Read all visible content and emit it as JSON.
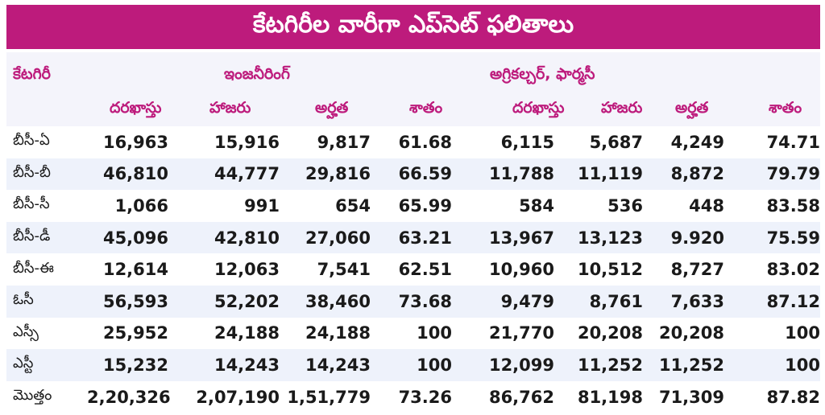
{
  "title": "కేటగిరీల వారీగా ఎప్‌సెట్ ఫలితాలు",
  "headers": {
    "category": "కేటగిరీ",
    "engineering": "ఇంజనీరింగ్",
    "agri_pharmacy": "అగ్రికల్చర్, ఫార్మసీ",
    "applied": "దరఖాస్తు",
    "attended": "హాజరు",
    "qualified": "అర్హత",
    "percent": "శాతం"
  },
  "rows": [
    {
      "category": "బీసీ-ఏ",
      "values": [
        "16,963",
        "15,916",
        "9,817",
        "61.68",
        "6,115",
        "5,687",
        "4,249",
        "74.71"
      ]
    },
    {
      "category": "బీసీ-బీ",
      "values": [
        "46,810",
        "44,777",
        "29,816",
        "66.59",
        "11,788",
        "11,119",
        "8,872",
        "79.79"
      ]
    },
    {
      "category": "బీసీ-సీ",
      "values": [
        "1,066",
        "991",
        "654",
        "65.99",
        "584",
        "536",
        "448",
        "83.58"
      ]
    },
    {
      "category": "బీసీ-డీ",
      "values": [
        "45,096",
        "42,810",
        "27,060",
        "63.21",
        "13,967",
        "13,123",
        "9.920",
        "75.59"
      ]
    },
    {
      "category": "బీసీ-ఈ",
      "values": [
        "12,614",
        "12,063",
        "7,541",
        "62.51",
        "10,960",
        "10,512",
        "8,727",
        "83.02"
      ]
    },
    {
      "category": "ఓసీ",
      "values": [
        "56,593",
        "52,202",
        "38,460",
        "73.68",
        "9,479",
        "8,761",
        "7,633",
        "87.12"
      ]
    },
    {
      "category": "ఎస్సీ",
      "values": [
        "25,952",
        "24,188",
        "24,188",
        "100",
        "21,770",
        "20,208",
        "20,208",
        "100"
      ]
    },
    {
      "category": "ఎస్టీ",
      "values": [
        "15,232",
        "14,243",
        "14,243",
        "100",
        "12,099",
        "11,252",
        "11,252",
        "100"
      ]
    },
    {
      "category": "మొత్తం",
      "values": [
        "2,20,326",
        "2,07,190",
        "1,51,779",
        "73.26",
        "86,762",
        "81,198",
        "71,309",
        "87.82"
      ]
    }
  ]
}
